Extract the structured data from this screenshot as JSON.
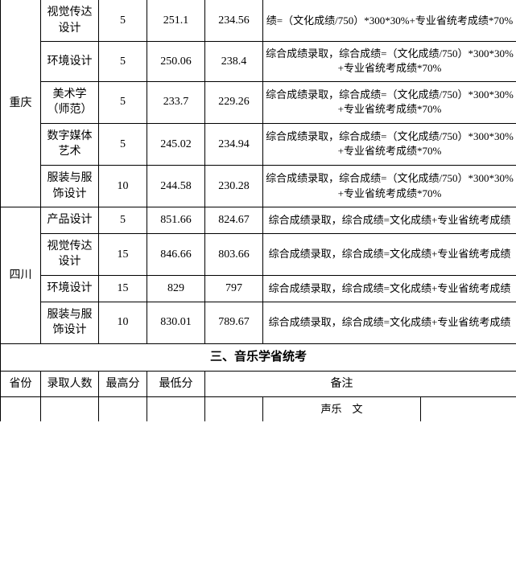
{
  "section1": {
    "provinces": [
      {
        "name": "重庆",
        "rows": [
          {
            "major": "视觉传达设计",
            "count": "5",
            "high": "251.1",
            "low": "234.56",
            "note": "绩=（文化成绩/750）*300*30%+专业省统考成绩*70%",
            "partial": true
          },
          {
            "major": "环境设计",
            "count": "5",
            "high": "250.06",
            "low": "238.4",
            "note": "综合成绩录取，综合成绩=（文化成绩/750）*300*30%+专业省统考成绩*70%"
          },
          {
            "major": "美术学（师范）",
            "count": "5",
            "high": "233.7",
            "low": "229.26",
            "note": "综合成绩录取，综合成绩=（文化成绩/750）*300*30%+专业省统考成绩*70%"
          },
          {
            "major": "数字媒体艺术",
            "count": "5",
            "high": "245.02",
            "low": "234.94",
            "note": "综合成绩录取，综合成绩=（文化成绩/750）*300*30%+专业省统考成绩*70%"
          },
          {
            "major": "服装与服饰设计",
            "count": "10",
            "high": "244.58",
            "low": "230.28",
            "note": "综合成绩录取，综合成绩=（文化成绩/750）*300*30%+专业省统考成绩*70%"
          }
        ]
      },
      {
        "name": "四川",
        "rows": [
          {
            "major": "产品设计",
            "count": "5",
            "high": "851.66",
            "low": "824.67",
            "note": "综合成绩录取，综合成绩=文化成绩+专业省统考成绩"
          },
          {
            "major": "视觉传达设计",
            "count": "15",
            "high": "846.66",
            "low": "803.66",
            "note": "综合成绩录取，综合成绩=文化成绩+专业省统考成绩"
          },
          {
            "major": "环境设计",
            "count": "15",
            "high": "829",
            "low": "797",
            "note": "综合成绩录取，综合成绩=文化成绩+专业省统考成绩"
          },
          {
            "major": "服装与服饰设计",
            "count": "10",
            "high": "830.01",
            "low": "789.67",
            "note": "综合成绩录取，综合成绩=文化成绩+专业省统考成绩"
          }
        ]
      }
    ]
  },
  "section2": {
    "title": "三、音乐学省统考",
    "headers": {
      "province": "省份",
      "count": "录取人数",
      "high": "最高分",
      "low": "最低分",
      "note": "备注"
    },
    "partial_cell": "声乐　文"
  }
}
